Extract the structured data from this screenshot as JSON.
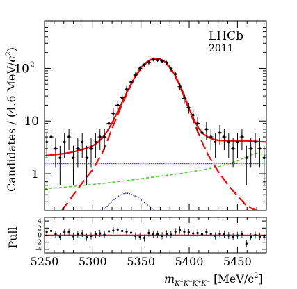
{
  "chart_data": [
    {
      "type": "scatter",
      "panel": "main",
      "title": "",
      "annotation": {
        "experiment": "LHCb",
        "year": "2011"
      },
      "xlabel": "m_{K+K-K+K-} [MeV/c2]",
      "xlabel_parts": {
        "base": "m",
        "sub": "K",
        "unit": "[MeV/c",
        "unit_exp": "2",
        "unit_close": "]"
      },
      "ylabel": "Candidates / (4.6  MeV/c2)",
      "ylabel_parts": {
        "text": "Candidates / (4.6  MeV/",
        "c": "c",
        "exp": "2",
        "close": ")"
      },
      "xlim": [
        5250,
        5480
      ],
      "ylim": [
        0.2,
        800
      ],
      "yscale": "log",
      "ytick_labels": [
        {
          "value": 1,
          "label": "1"
        },
        {
          "value": 10,
          "label": "10"
        },
        {
          "value": 100,
          "base": "10",
          "exp": "2"
        }
      ],
      "x_bin_width": 4.6,
      "data": {
        "name": "data",
        "x": [
          5252.3,
          5256.9,
          5261.5,
          5266.1,
          5270.7,
          5275.3,
          5279.9,
          5284.5,
          5289.1,
          5293.7,
          5298.3,
          5302.9,
          5307.5,
          5312.1,
          5316.7,
          5321.3,
          5325.9,
          5330.5,
          5335.1,
          5339.7,
          5344.3,
          5348.9,
          5353.5,
          5358.1,
          5362.7,
          5367.3,
          5371.9,
          5376.5,
          5381.1,
          5385.7,
          5390.3,
          5394.9,
          5399.5,
          5404.1,
          5408.7,
          5413.3,
          5417.9,
          5422.5,
          5427.1,
          5431.7,
          5436.3,
          5440.9,
          5445.5,
          5450.1,
          5454.7,
          5459.3,
          5463.9,
          5468.5,
          5473.1,
          5477.7
        ],
        "y": [
          4,
          5,
          3,
          2,
          4,
          5,
          2,
          3,
          4,
          2,
          3,
          4,
          5,
          5,
          9,
          14,
          20,
          28,
          40,
          55,
          75,
          100,
          118,
          130,
          148,
          145,
          138,
          128,
          98,
          78,
          45,
          27,
          18,
          13,
          9,
          6,
          7,
          5,
          4,
          6,
          5,
          4,
          3,
          4,
          5,
          2,
          3,
          4,
          3,
          2
        ],
        "y_err": [
          2.0,
          2.2,
          1.7,
          1.4,
          2.0,
          2.2,
          1.4,
          1.7,
          2.0,
          1.4,
          1.7,
          2.0,
          2.2,
          2.2,
          3.0,
          3.7,
          4.5,
          5.3,
          6.3,
          7.4,
          8.7,
          10,
          10.9,
          11.4,
          12.2,
          12.0,
          11.7,
          11.3,
          9.9,
          8.8,
          6.7,
          5.2,
          4.2,
          3.6,
          3.0,
          2.4,
          2.6,
          2.2,
          2.0,
          2.4,
          2.2,
          2.0,
          1.7,
          2.0,
          2.2,
          1.4,
          1.7,
          2.0,
          1.7,
          1.4
        ]
      },
      "series": [
        {
          "name": "total fit",
          "style": "solid",
          "color": "#ff0000",
          "x": [
            5250,
            5260,
            5270,
            5280,
            5290,
            5300,
            5305,
            5310,
            5315,
            5320,
            5325,
            5330,
            5335,
            5340,
            5345,
            5350,
            5355,
            5360,
            5365,
            5370,
            5375,
            5380,
            5385,
            5390,
            5395,
            5400,
            5405,
            5410,
            5415,
            5420,
            5425,
            5430,
            5440,
            5450,
            5460,
            5470,
            5480
          ],
          "y": [
            2.2,
            2.3,
            2.4,
            2.6,
            2.9,
            3.4,
            3.9,
            4.8,
            6.4,
            9.2,
            14,
            22,
            34,
            52,
            76,
            103,
            128,
            147,
            155,
            150,
            133,
            106,
            76,
            50,
            30,
            17,
            10.5,
            7.2,
            5.6,
            4.9,
            4.5,
            4.3,
            4.2,
            4.2,
            4.2,
            4.1,
            4.0
          ]
        },
        {
          "name": "signal",
          "style": "long-dash",
          "color": "#ff0000",
          "x": [
            5268,
            5280,
            5290,
            5300,
            5310,
            5315,
            5320,
            5325,
            5330,
            5335,
            5340,
            5345,
            5350,
            5355,
            5360,
            5365,
            5370,
            5375,
            5380,
            5385,
            5390,
            5395,
            5400,
            5405,
            5410,
            5415,
            5420,
            5430,
            5440,
            5450,
            5460,
            5470
          ],
          "y": [
            0.2,
            0.4,
            0.7,
            1.2,
            2.5,
            4.2,
            7.2,
            12,
            20,
            32,
            50,
            73,
            100,
            125,
            145,
            152,
            147,
            130,
            103,
            73,
            48,
            28,
            16,
            9.5,
            5.6,
            3.4,
            2.2,
            1.1,
            0.62,
            0.38,
            0.24,
            0.2
          ]
        },
        {
          "name": "combinatorial background",
          "style": "dotted",
          "color": "#cc00ff",
          "x": [
            5250,
            5480
          ],
          "y": [
            1.55,
            1.55
          ]
        },
        {
          "name": "partially reconstructed background",
          "style": "dashed",
          "color": "#55cc33",
          "x": [
            5250,
            5270,
            5290,
            5310,
            5330,
            5350,
            5370,
            5390,
            5410,
            5430,
            5450,
            5460,
            5465,
            5470,
            5475,
            5480
          ],
          "y": [
            0.52,
            0.55,
            0.6,
            0.65,
            0.72,
            0.8,
            0.9,
            1.0,
            1.15,
            1.35,
            1.75,
            2.1,
            2.3,
            2.45,
            2.35,
            2.2
          ]
        },
        {
          "name": "peaking background",
          "style": "fine-dotted",
          "color": "#0000ff",
          "x": [
            5310,
            5315,
            5320,
            5325,
            5330,
            5335,
            5340,
            5345,
            5350,
            5355,
            5360,
            5365
          ],
          "y": [
            0.2,
            0.24,
            0.3,
            0.36,
            0.41,
            0.43,
            0.41,
            0.37,
            0.32,
            0.27,
            0.23,
            0.2
          ]
        }
      ]
    },
    {
      "type": "scatter",
      "panel": "pull",
      "ylabel": "Pull",
      "xlim": [
        5250,
        5480
      ],
      "ylim": [
        -5,
        5
      ],
      "ytick_labels": [
        "4",
        "2",
        "0",
        "-2",
        "-4"
      ],
      "xtick_labels": [
        "5250",
        "5300",
        "5350",
        "5400",
        "5450"
      ],
      "reference_line": {
        "y": 0,
        "color": "#ff0000"
      },
      "x": [
        5252.3,
        5256.9,
        5261.5,
        5266.1,
        5270.7,
        5275.3,
        5279.9,
        5284.5,
        5289.1,
        5293.7,
        5298.3,
        5302.9,
        5307.5,
        5312.1,
        5316.7,
        5321.3,
        5325.9,
        5330.5,
        5335.1,
        5339.7,
        5344.3,
        5348.9,
        5353.5,
        5358.1,
        5362.7,
        5367.3,
        5371.9,
        5376.5,
        5381.1,
        5385.7,
        5390.3,
        5394.9,
        5399.5,
        5404.1,
        5408.7,
        5413.3,
        5417.9,
        5422.5,
        5427.1,
        5431.7,
        5436.3,
        5440.9,
        5445.5,
        5450.1,
        5454.7,
        5459.3,
        5463.9,
        5468.5,
        5473.1,
        5477.7
      ],
      "y": [
        0.9,
        1.2,
        0.3,
        -0.5,
        0.8,
        0.9,
        -0.3,
        0.2,
        0.5,
        -0.6,
        -0.2,
        0.3,
        0.5,
        0.1,
        1.1,
        1.3,
        1.6,
        1.2,
        1.0,
        0.7,
        -0.2,
        -0.4,
        -0.8,
        0.6,
        0.2,
        0.3,
        -0.2,
        0.4,
        0.1,
        1.0,
        1.4,
        1.0,
        0.8,
        0.5,
        0.6,
        0.3,
        0.9,
        0.4,
        -0.2,
        0.4,
        0.3,
        -0.1,
        -0.4,
        -0.1,
        0.3,
        -2.4,
        -0.5,
        0.0,
        -0.4,
        -0.6
      ]
    }
  ]
}
